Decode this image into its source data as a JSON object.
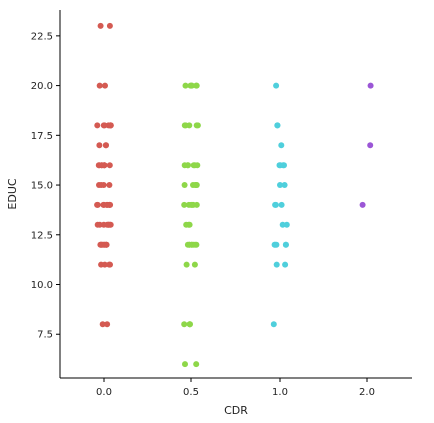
{
  "chart_data": {
    "type": "scatter",
    "title": "",
    "xlabel": "CDR",
    "ylabel": "EDUC",
    "categories": [
      "0.0",
      "0.5",
      "1.0",
      "2.0"
    ],
    "ylim": [
      5.3,
      23.8
    ],
    "y_ticks": [
      "7.5",
      "10.0",
      "12.5",
      "15.0",
      "17.5",
      "20.0",
      "22.5"
    ],
    "grid": false,
    "legend": "none",
    "series": [
      {
        "category": "0.0",
        "color": "#d45a52",
        "y": [
          23,
          23,
          20,
          20,
          18,
          18,
          18,
          18,
          18,
          18,
          18,
          18,
          17,
          17,
          17,
          16,
          16,
          16,
          16,
          16,
          16,
          16,
          16,
          15,
          15,
          15,
          15,
          14,
          14,
          14,
          14,
          14,
          14,
          14,
          14,
          14,
          13,
          13,
          13,
          13,
          13,
          13,
          13,
          13,
          12,
          12,
          12,
          12,
          12,
          12,
          12,
          12,
          12,
          11,
          11,
          11,
          11,
          8,
          8
        ]
      },
      {
        "category": "0.5",
        "color": "#8ed749",
        "y": [
          20,
          20,
          20,
          20,
          20,
          20,
          18,
          18,
          18,
          18,
          18,
          16,
          16,
          16,
          16,
          16,
          16,
          15,
          15,
          15,
          15,
          15,
          14,
          14,
          14,
          14,
          14,
          14,
          13,
          13,
          13,
          12,
          12,
          12,
          12,
          12,
          12,
          12,
          12,
          11,
          11,
          8,
          8,
          8,
          8,
          6,
          6
        ]
      },
      {
        "category": "1.0",
        "color": "#4fcfdc",
        "y": [
          20,
          18,
          18,
          17,
          16,
          16,
          16,
          16,
          15,
          15,
          14,
          14,
          14,
          13,
          13,
          12,
          12,
          12,
          12,
          12,
          11,
          11,
          8
        ]
      },
      {
        "category": "2.0",
        "color": "#9b56d6",
        "y": [
          20,
          17,
          14
        ]
      }
    ]
  }
}
